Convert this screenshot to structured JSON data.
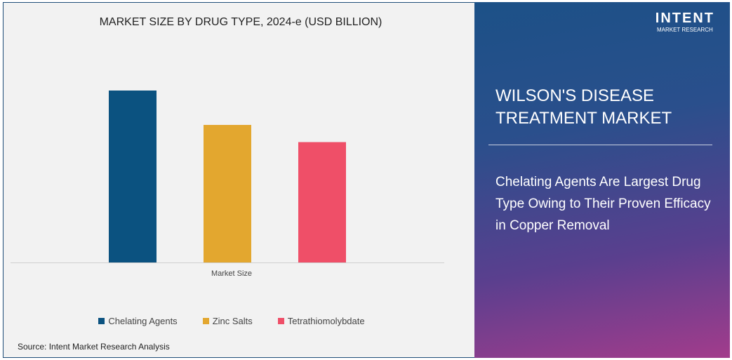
{
  "chart_data": {
    "type": "bar",
    "title": "MARKET SIZE BY DRUG TYPE, 2024-e (USD BILLION)",
    "categories": [
      "Market Size"
    ],
    "series": [
      {
        "name": "Chelating Agents",
        "values": [
          1.0
        ],
        "color": "#0b5280"
      },
      {
        "name": "Zinc Salts",
        "values": [
          0.8
        ],
        "color": "#e3a72f"
      },
      {
        "name": "Tetrathiomolybdate",
        "values": [
          0.7
        ],
        "color": "#ef4f68"
      }
    ],
    "grid": false,
    "legend": "bottom"
  },
  "source": "Source: Intent Market Research Analysis",
  "panel": {
    "title": "WILSON'S DISEASE TREATMENT MARKET",
    "subtitle": "Chelating Agents Are Largest Drug Type Owing to Their Proven Efficacy in Copper Removal"
  },
  "logo": {
    "brand": "INTENT",
    "tagline": "MARKET RESEARCH"
  }
}
